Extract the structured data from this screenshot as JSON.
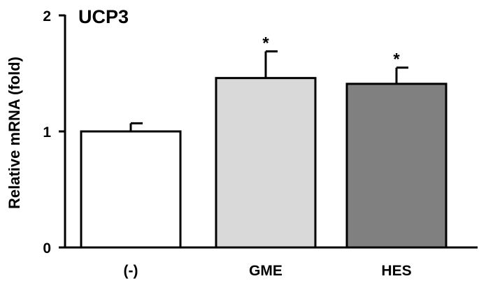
{
  "chart_data": {
    "type": "bar",
    "title": "UCP3",
    "ylabel": "Relative mRNA (fold)",
    "xlabel": "",
    "categories": [
      "(-)",
      "GME",
      "HES"
    ],
    "values": [
      1.0,
      1.46,
      1.41
    ],
    "errors": [
      0.07,
      0.23,
      0.14
    ],
    "significance": [
      "",
      "*",
      "*"
    ],
    "ylim": [
      0,
      2
    ],
    "yticks": [
      0,
      1,
      2
    ],
    "bar_colors": [
      "#ffffff",
      "#d9d9d9",
      "#808080"
    ],
    "grid": false,
    "legend": "none"
  }
}
